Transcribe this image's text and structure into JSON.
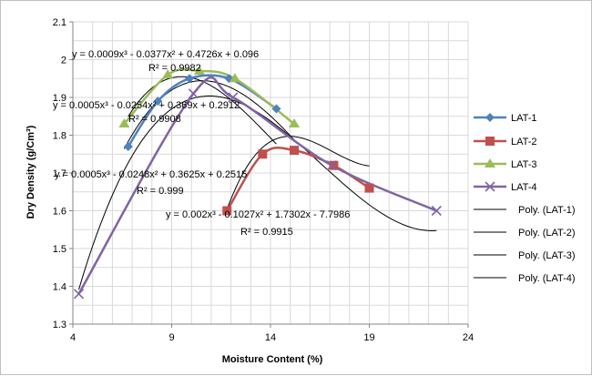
{
  "chart_data": {
    "type": "scatter",
    "title": "",
    "xlabel": "Moisture Content (%)",
    "ylabel": "Dry Density (g/Cm³)",
    "xlim": [
      4,
      24
    ],
    "ylim": [
      1.3,
      2.1
    ],
    "x_ticks": [
      "4",
      "9",
      "14",
      "19",
      "24"
    ],
    "y_ticks": [
      "1.3",
      "1.4",
      "1.5",
      "1.6",
      "1.7",
      "1.8",
      "1.9",
      "2",
      "2.1"
    ],
    "grid": true,
    "legend_position": "right",
    "series": [
      {
        "name": "LAT-1",
        "color": "#4f81bd",
        "marker": "diamond",
        "x": [
          6.8,
          8.3,
          9.9,
          11.9,
          14.3
        ],
        "y": [
          1.77,
          1.89,
          1.95,
          1.95,
          1.87
        ]
      },
      {
        "name": "LAT-2",
        "color": "#c0504d",
        "marker": "square",
        "x": [
          11.8,
          13.6,
          15.2,
          17.2,
          19.0
        ],
        "y": [
          1.6,
          1.75,
          1.76,
          1.72,
          1.66
        ]
      },
      {
        "name": "LAT-3",
        "color": "#9bbb59",
        "marker": "triangle",
        "x": [
          6.6,
          8.8,
          10.4,
          12.2,
          15.2
        ],
        "y": [
          1.83,
          1.96,
          1.97,
          1.95,
          1.83
        ]
      },
      {
        "name": "LAT-4",
        "color": "#8064a2",
        "marker": "x",
        "x": [
          4.3,
          10.1,
          12.1,
          17.1,
          22.4
        ],
        "y": [
          1.38,
          1.91,
          1.9,
          1.72,
          1.6
        ]
      }
    ],
    "trendlines": [
      {
        "name": "Poly. (LAT-1)",
        "coeffs": [
          0.0009,
          -0.0377,
          0.4726,
          0.096
        ],
        "equation": "y = 0.0009x³ - 0.0377x² + 0.4726x + 0.096",
        "r2": "R² = 0.9982"
      },
      {
        "name": "Poly. (LAT-2)",
        "coeffs": [
          0.002,
          -0.1027,
          1.7302,
          -7.7986
        ],
        "equation": "y = 0.002x³ - 0.1027x² + 1.7302x - 7.7986",
        "r2": "R² = 0.9915"
      },
      {
        "name": "Poly. (LAT-3)",
        "coeffs": [
          0.0005,
          -0.0254,
          0.369,
          0.2912
        ],
        "equation": "y = 0.0005x³ - 0.0254x² + 0.369x + 0.2912",
        "r2": "R² = 0.9908"
      },
      {
        "name": "Poly. (LAT-4)",
        "coeffs": [
          0.0005,
          -0.0248,
          0.3625,
          0.2515
        ],
        "equation": "y = 0.0005x³ - 0.0248x² + 0.3625x + 0.2515",
        "r2": "R² = 0.999"
      }
    ],
    "trendline_color": "#000000"
  }
}
